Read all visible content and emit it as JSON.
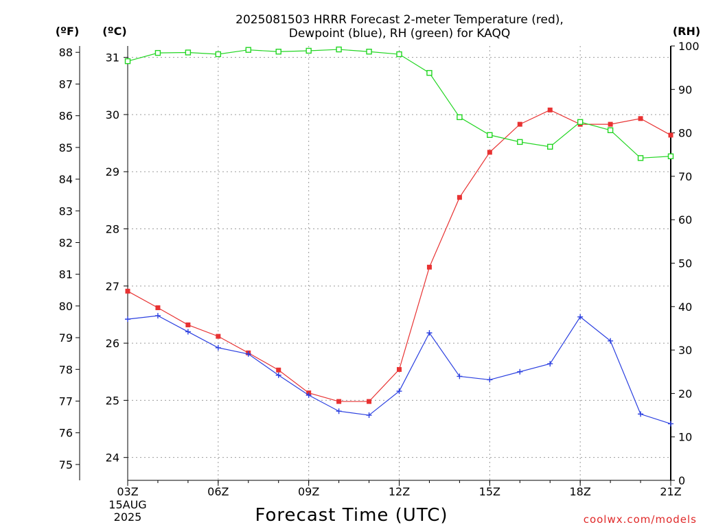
{
  "chart_data": {
    "type": "line",
    "title_line1": "2025081503 HRRR Forecast 2-meter Temperature (red),",
    "title_line2": "Dewpoint (blue), RH (green) for KAQQ",
    "xlabel": "Forecast Time (UTC)",
    "credit": "coolwx.com/models",
    "units": {
      "fahrenheit": "(ºF)",
      "celsius": "(ºC)",
      "rh": "(RH)"
    },
    "x_start_label": [
      "03Z",
      "15AUG",
      "2025"
    ],
    "x_ticks": [
      {
        "hour": 3,
        "label": "03Z"
      },
      {
        "hour": 6,
        "label": "06Z"
      },
      {
        "hour": 9,
        "label": "09Z"
      },
      {
        "hour": 12,
        "label": "12Z"
      },
      {
        "hour": 15,
        "label": "15Z"
      },
      {
        "hour": 18,
        "label": "18Z"
      },
      {
        "hour": 21,
        "label": "21Z"
      }
    ],
    "x_hours": [
      3,
      4,
      5,
      6,
      7,
      8,
      9,
      10,
      11,
      12,
      13,
      14,
      15,
      16,
      17,
      18,
      19,
      20,
      21
    ],
    "xlim": [
      3,
      21
    ],
    "celsius_axis": {
      "ylim": [
        23.6,
        31.2
      ],
      "ticks": [
        24,
        25,
        26,
        27,
        28,
        29,
        30,
        31
      ]
    },
    "fahrenheit_axis": {
      "ylim": [
        74.5,
        88.2
      ],
      "ticks": [
        75,
        76,
        77,
        78,
        79,
        80,
        81,
        82,
        83,
        84,
        85,
        86,
        87,
        88
      ]
    },
    "rh_axis": {
      "ylim": [
        0,
        100
      ],
      "ticks": [
        0,
        10,
        20,
        30,
        40,
        50,
        60,
        70,
        80,
        90,
        100
      ]
    },
    "grid": true,
    "series": [
      {
        "name": "Temperature",
        "axis": "celsius",
        "color": "#e83232",
        "marker": "filled-square",
        "values": [
          26.91,
          26.62,
          26.32,
          26.12,
          25.83,
          25.53,
          25.13,
          24.98,
          24.98,
          25.54,
          27.33,
          28.55,
          29.34,
          29.83,
          30.08,
          29.83,
          29.83,
          29.93,
          29.64
        ]
      },
      {
        "name": "Dewpoint",
        "axis": "celsius",
        "color": "#2a3fe0",
        "marker": "plus",
        "values": [
          26.42,
          26.48,
          26.2,
          25.92,
          25.81,
          25.44,
          25.09,
          24.81,
          24.74,
          25.16,
          26.18,
          25.42,
          25.36,
          25.5,
          25.64,
          26.46,
          26.04,
          24.76,
          24.59
        ]
      },
      {
        "name": "RH",
        "axis": "rh",
        "color": "#22d622",
        "marker": "open-square",
        "values": [
          96.5,
          98.4,
          98.5,
          98.1,
          99.1,
          98.7,
          98.9,
          99.2,
          98.7,
          98.1,
          93.8,
          83.6,
          79.5,
          77.9,
          76.8,
          82.5,
          80.6,
          74.2,
          74.6
        ]
      }
    ]
  }
}
